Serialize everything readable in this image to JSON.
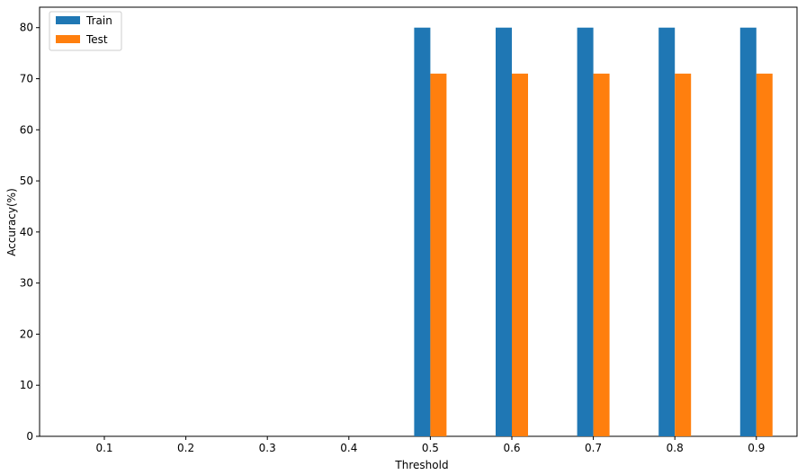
{
  "chart_data": {
    "type": "bar",
    "categories": [
      "0.1",
      "0.2",
      "0.3",
      "0.4",
      "0.5",
      "0.6",
      "0.7",
      "0.8",
      "0.9"
    ],
    "series": [
      {
        "name": "Train",
        "color": "#1f77b4",
        "values": [
          0,
          0,
          0,
          0,
          80,
          80,
          80,
          80,
          80
        ]
      },
      {
        "name": "Test",
        "color": "#ff7f0e",
        "values": [
          0,
          0,
          0,
          0,
          71,
          71,
          71,
          71,
          71
        ]
      }
    ],
    "title": "",
    "xlabel": "Threshold",
    "ylabel": "Accuracy(%)",
    "ylim": [
      0,
      84
    ],
    "yticks": [
      "0",
      "10",
      "20",
      "30",
      "40",
      "50",
      "60",
      "70",
      "80"
    ],
    "grid": false,
    "legend_position": "top-left"
  }
}
